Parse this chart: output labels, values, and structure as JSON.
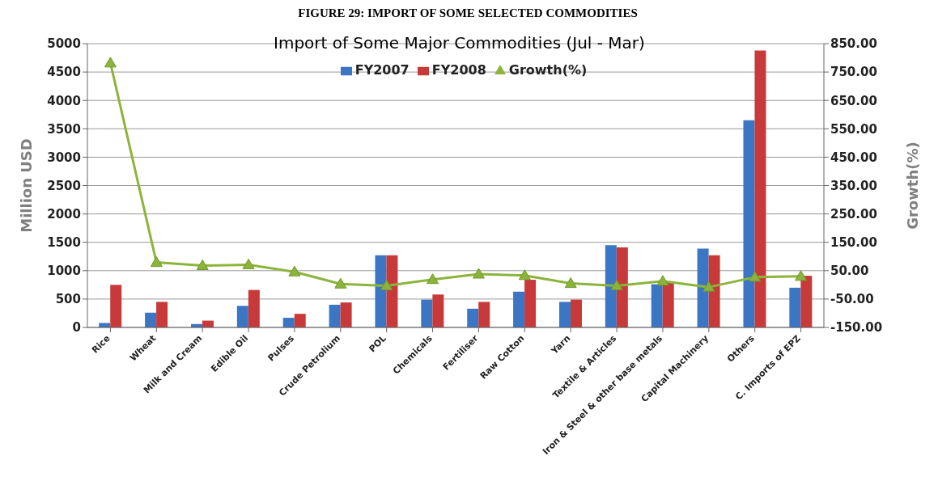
{
  "chart_data": {
    "type": "bar",
    "title": "FIGURE 29: IMPORT OF SOME SELECTED COMMODITIES",
    "subtitle": "Import of Some Major Commodities (Jul - Mar)",
    "ylabel": "Million USD",
    "y2label": "Growth(%)",
    "categories": [
      "Rice",
      "Wheat",
      "Milk and Cream",
      "Edible Oil",
      "Pulses",
      "Crude Petrolium",
      "POL",
      "Chemicals",
      "Fertiliser",
      "Raw Cotton",
      "Yarn",
      "Textile & Articles",
      "Iron & Steel & other base metals",
      "Capital Machinery",
      "Others",
      "C. Imports of EPZ"
    ],
    "series": [
      {
        "name": "FY2007",
        "color": "#3a76c4",
        "values": [
          80,
          260,
          60,
          380,
          170,
          400,
          1270,
          490,
          330,
          630,
          450,
          1450,
          760,
          1390,
          3650,
          700
        ]
      },
      {
        "name": "FY2008",
        "color": "#c83a3a",
        "values": [
          750,
          450,
          120,
          660,
          240,
          440,
          1270,
          580,
          450,
          840,
          490,
          1410,
          800,
          1270,
          4880,
          910
        ]
      },
      {
        "name": "Growth(%)",
        "type": "line",
        "axis": "y2",
        "color": "#8cb43c",
        "marker": "triangle",
        "values": [
          782,
          79,
          68,
          71,
          46,
          3,
          -3,
          19,
          38,
          33,
          5,
          -3,
          13,
          -8,
          27,
          30
        ]
      }
    ],
    "ylim": [
      0,
      5000
    ],
    "yticks": [
      0,
      500,
      1000,
      1500,
      2000,
      2500,
      3000,
      3500,
      4000,
      4500,
      5000
    ],
    "y2lim": [
      -150,
      850
    ],
    "y2ticks": [
      {
        "value": -150,
        "label": "-150.00"
      },
      {
        "value": -50,
        "label": "-50.00"
      },
      {
        "value": 50,
        "label": "50.00"
      },
      {
        "value": 150,
        "label": "150.00"
      },
      {
        "value": 250,
        "label": "250.00"
      },
      {
        "value": 350,
        "label": "350.00"
      },
      {
        "value": 450,
        "label": "450.00"
      },
      {
        "value": 550,
        "label": "550.00"
      },
      {
        "value": 650,
        "label": "650.00"
      },
      {
        "value": 750,
        "label": "750.00"
      },
      {
        "value": 850,
        "label": "850.00"
      }
    ],
    "grid": "y",
    "legend": "top"
  }
}
